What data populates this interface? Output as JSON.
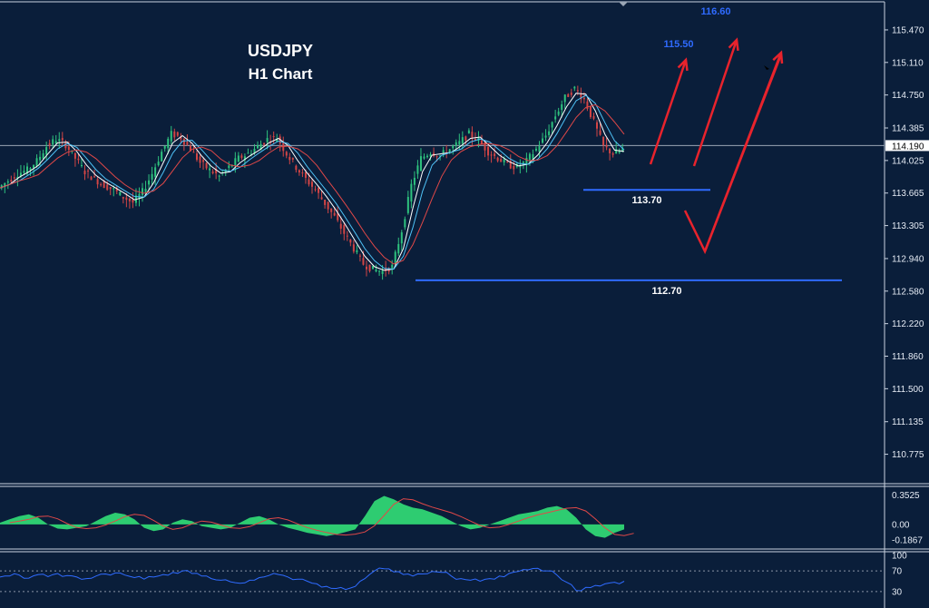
{
  "title": {
    "symbol": "USDJPY",
    "timeframe": "H1 Chart"
  },
  "colors": {
    "background": "#0a1e3a",
    "axis": "#c9d2e0",
    "candle_up": "#2ec27e",
    "candle_down": "#d24545",
    "ma_fast": "#ffffff",
    "ma_mid": "#4fc3f7",
    "ma_slow": "#e04848",
    "level_line": "#2f6bff",
    "arrow": "#e8232c",
    "macd_hist": "#2ecc71",
    "macd_signal": "#e04848",
    "rsi_line": "#2f6bff",
    "current_price_line": "#9aa6b5"
  },
  "chart_data": [
    {
      "type": "line",
      "title": "USDJPY H1 Chart",
      "ylim": [
        110.6,
        115.6
      ],
      "y_ticks": [
        "115.470",
        "115.110",
        "114.750",
        "114.385",
        "114.025",
        "113.665",
        "113.305",
        "112.940",
        "112.580",
        "112.220",
        "111.860",
        "111.500",
        "111.135",
        "110.775"
      ],
      "y_tick_values": [
        115.47,
        115.11,
        114.75,
        114.385,
        114.025,
        113.665,
        113.305,
        112.94,
        112.58,
        112.22,
        111.86,
        111.5,
        111.135,
        110.775
      ],
      "current_price": "114.190",
      "price_series": [
        113.72,
        113.8,
        113.88,
        113.92,
        114.02,
        114.18,
        114.26,
        114.2,
        114.05,
        113.9,
        113.82,
        113.75,
        113.7,
        113.62,
        113.56,
        113.68,
        113.88,
        114.12,
        114.32,
        114.28,
        114.15,
        114.0,
        113.92,
        113.85,
        113.95,
        114.05,
        114.1,
        114.18,
        114.26,
        114.28,
        114.1,
        113.95,
        113.82,
        113.7,
        113.55,
        113.4,
        113.22,
        113.05,
        112.88,
        112.82,
        112.8,
        112.85,
        113.25,
        113.75,
        114.05,
        114.12,
        114.08,
        114.15,
        114.22,
        114.32,
        114.25,
        114.12,
        114.05,
        113.98,
        113.95,
        114.02,
        114.15,
        114.3,
        114.52,
        114.72,
        114.82,
        114.7,
        114.45,
        114.18,
        114.1,
        114.15
      ],
      "levels": [
        {
          "label": "113.70",
          "value": 113.7
        },
        {
          "label": "112.70",
          "value": 112.7
        }
      ],
      "targets": [
        {
          "label": "115.50",
          "value": 115.5
        },
        {
          "label": "116.60",
          "value": 116.6
        }
      ]
    },
    {
      "type": "bar",
      "title": "",
      "y_ticks": [
        "0.3525",
        "0.00",
        "-0.1867"
      ],
      "y_tick_values": [
        0.3525,
        0.0,
        -0.1867
      ],
      "ylim": [
        -0.24,
        0.4
      ],
      "values": [
        0.02,
        0.06,
        0.1,
        0.12,
        0.08,
        0.0,
        -0.05,
        -0.06,
        -0.04,
        -0.02,
        0.04,
        0.1,
        0.14,
        0.12,
        0.06,
        -0.04,
        -0.08,
        -0.06,
        0.02,
        0.06,
        0.04,
        -0.02,
        -0.04,
        -0.06,
        -0.04,
        0.02,
        0.08,
        0.1,
        0.06,
        0.0,
        -0.04,
        -0.07,
        -0.1,
        -0.12,
        -0.14,
        -0.12,
        -0.09,
        -0.06,
        0.1,
        0.28,
        0.34,
        0.3,
        0.24,
        0.2,
        0.18,
        0.14,
        0.1,
        0.04,
        -0.02,
        -0.06,
        -0.04,
        0.0,
        0.04,
        0.08,
        0.12,
        0.14,
        0.16,
        0.2,
        0.22,
        0.18,
        0.08,
        -0.06,
        -0.14,
        -0.16,
        -0.1,
        -0.06
      ]
    },
    {
      "type": "line",
      "title": "",
      "y_ticks": [
        "100",
        "70",
        "30"
      ],
      "y_tick_values": [
        100,
        70,
        30
      ],
      "ylim": [
        0,
        100
      ],
      "values": [
        58,
        60,
        62,
        56,
        63,
        59,
        65,
        61,
        58,
        55,
        60,
        64,
        66,
        62,
        57,
        54,
        58,
        63,
        67,
        70,
        65,
        60,
        55,
        52,
        49,
        46,
        52,
        57,
        61,
        63,
        58,
        54,
        50,
        45,
        40,
        36,
        34,
        40,
        55,
        70,
        74,
        68,
        63,
        60,
        64,
        69,
        67,
        60,
        55,
        52,
        50,
        55,
        60,
        65,
        69,
        72,
        75,
        70,
        62,
        48,
        32,
        38,
        42,
        45,
        48,
        50
      ]
    }
  ]
}
